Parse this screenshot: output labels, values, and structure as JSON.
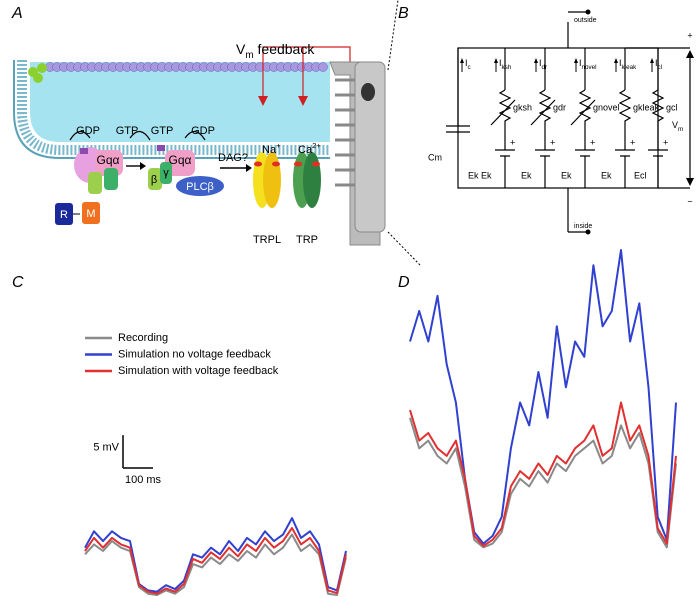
{
  "panel_labels": [
    "A",
    "B",
    "C",
    "D"
  ],
  "diagram_a": {
    "feedback_label": {
      "symbol": "V",
      "sub": "m",
      "text": "feedback"
    },
    "nucleotides": [
      "GDP",
      "GTP",
      "GTP",
      "GDP"
    ],
    "g_alpha": [
      "Gqα",
      "Gqα"
    ],
    "beta": "β",
    "gamma": "γ",
    "plc": "PLCβ",
    "dag": "DAG?",
    "ions": [
      {
        "symbol": "Na",
        "charge": "+"
      },
      {
        "symbol": "Ca",
        "charge": "2+"
      }
    ],
    "receptor": "R",
    "metarhodopsin": "M",
    "channels": [
      "TRPL",
      "TRP"
    ]
  },
  "diagram_b": {
    "outside": "outside",
    "inside": "inside",
    "capacitance": "Cm",
    "current_symbol": "I",
    "current_subscripts": [
      "c",
      "ksh",
      "dr",
      "novel",
      "kleak",
      "cl"
    ],
    "conductances": [
      "gksh",
      "gdr",
      "gnovel",
      "gkleak",
      "gcl"
    ],
    "reversals": [
      "Ek",
      "Ek",
      "Ek",
      "Ek",
      "Ek",
      "Ecl"
    ],
    "voltage": {
      "symbol": "V",
      "sub": "m"
    },
    "plus": "+",
    "minus": "−"
  },
  "chart_data": [
    {
      "type": "line",
      "scale_bar": {
        "y": {
          "value": 5,
          "label": "5 mV"
        },
        "x": {
          "value": 100,
          "label": "100 ms"
        }
      },
      "xlim": [
        0,
        870
      ],
      "ylim": [
        0,
        14
      ],
      "x": [
        0,
        30,
        60,
        90,
        120,
        150,
        180,
        210,
        240,
        270,
        300,
        330,
        360,
        390,
        420,
        450,
        480,
        510,
        540,
        570,
        600,
        630,
        660,
        690,
        720,
        750,
        780,
        810,
        840,
        870
      ],
      "series": [
        {
          "name": "Recording",
          "color": "#8a8a8a",
          "values": [
            6.5,
            8,
            7,
            8.5,
            7.5,
            7,
            1.5,
            0.5,
            0.3,
            1,
            0.5,
            1.5,
            5,
            4.5,
            6,
            5,
            6.5,
            5.5,
            7,
            6,
            8,
            6.5,
            7.5,
            9.5,
            7,
            8,
            6.5,
            0.5,
            0.3,
            6
          ]
        },
        {
          "name": "Simulation no voltage feedback",
          "color": "#3040d0",
          "values": [
            7.5,
            10,
            8.5,
            10,
            9,
            8.5,
            2,
            1,
            0.8,
            1.8,
            1.2,
            2.5,
            6.5,
            6,
            7.5,
            6.5,
            8.5,
            7,
            9,
            8,
            10,
            8.5,
            9.5,
            12,
            9,
            10,
            8,
            1.5,
            1,
            7
          ]
        },
        {
          "name": "Simulation with voltage feedback",
          "color": "#e03030",
          "values": [
            7,
            9,
            7.5,
            9,
            8,
            7.5,
            1.8,
            0.8,
            0.5,
            1.3,
            0.8,
            2,
            5.8,
            5.2,
            6.8,
            5.8,
            7.5,
            6.2,
            8,
            7,
            9,
            7.5,
            8.5,
            10.5,
            8,
            9,
            7,
            1,
            0.6,
            6.5
          ]
        }
      ]
    },
    {
      "type": "line",
      "xlim": [
        0,
        870
      ],
      "ylim": [
        0,
        40
      ],
      "x": [
        0,
        30,
        60,
        90,
        120,
        150,
        180,
        210,
        240,
        270,
        300,
        330,
        360,
        390,
        420,
        450,
        480,
        510,
        540,
        570,
        600,
        630,
        660,
        690,
        720,
        750,
        780,
        810,
        840,
        870
      ],
      "series": [
        {
          "color": "#8a8a8a",
          "values": [
            18,
            14,
            15,
            13,
            12,
            14,
            9,
            2,
            1,
            1.5,
            3,
            8,
            10,
            9,
            11,
            9.5,
            12,
            11,
            13,
            14,
            15,
            12,
            13,
            17,
            14,
            16,
            12,
            3,
            1,
            12
          ]
        },
        {
          "color": "#3040d0",
          "values": [
            28,
            32,
            28,
            34,
            25,
            20,
            10,
            3,
            1.5,
            2.5,
            5,
            14,
            20,
            17,
            24,
            18,
            30,
            22,
            28,
            26,
            38,
            30,
            32,
            40,
            28,
            33,
            22,
            5,
            2,
            20
          ]
        },
        {
          "color": "#e03030",
          "values": [
            19,
            15,
            16,
            14,
            13,
            15,
            10,
            2.5,
            1.2,
            2,
            3.5,
            9,
            11,
            10,
            12,
            10.5,
            13,
            12,
            14,
            15,
            17,
            13,
            14,
            20,
            15,
            17,
            13,
            3.5,
            1.5,
            13
          ]
        }
      ]
    }
  ]
}
